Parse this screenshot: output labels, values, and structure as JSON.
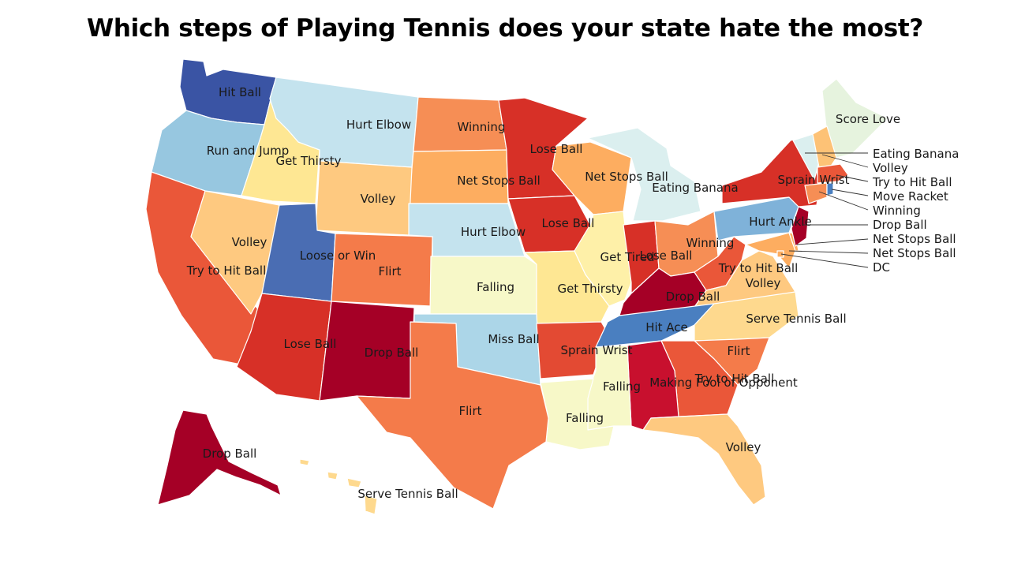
{
  "title": "Which steps of Playing Tennis does your state hate the most?",
  "palette": {
    "dark_red": "#a50026",
    "red": "#d73027",
    "orange_red": "#ea5739",
    "orange": "#f47b4a",
    "light_orange": "#fdad60",
    "peach": "#fec980",
    "yellow": "#fee793",
    "pale_yellow": "#f7f8c8",
    "mint": "#e6f3de",
    "pale_cyan": "#dbefef",
    "light_blue": "#c4e3ee",
    "sky": "#97c7e0",
    "mid_blue": "#7fb2d9",
    "blue": "#4a77b8",
    "dark_blue": "#3a54a4"
  },
  "states": {
    "WA": {
      "label": "Hit Ball",
      "color": "#3a54a4"
    },
    "OR": {
      "label": "Run and Jump",
      "color": "#97c7e0"
    },
    "ID": {
      "label": "Get Thirsty",
      "color": "#fee793"
    },
    "MT": {
      "label": "Hurt Elbow",
      "color": "#c4e3ee"
    },
    "ND": {
      "label": "Winning",
      "color": "#f68e55"
    },
    "MN": {
      "label": "Lose Ball",
      "color": "#d73027"
    },
    "WY": {
      "label": "Volley",
      "color": "#fec980"
    },
    "SD": {
      "label": "Net Stops Ball",
      "color": "#fdad60"
    },
    "WI": {
      "label": "Net Stops Ball",
      "color": "#fdad60"
    },
    "MI": {
      "label": "Eating Banana",
      "color": "#dbefef"
    },
    "CA": {
      "label": "Try to Hit Ball",
      "color": "#ea5739"
    },
    "NV": {
      "label": "Volley",
      "color": "#fec980"
    },
    "UT": {
      "label": "Loose or Win",
      "color": "#4a6db3"
    },
    "CO": {
      "label": "Flirt",
      "color": "#f47b4a"
    },
    "NE": {
      "label": "Hurt Elbow",
      "color": "#c4e3ee"
    },
    "IA": {
      "label": "Lose Ball",
      "color": "#d73027"
    },
    "IL": {
      "label": "Get Tired",
      "color": "#fef0a8"
    },
    "IN": {
      "label": "Lose Ball",
      "color": "#d73027"
    },
    "OH": {
      "label": "Winning",
      "color": "#f68e55"
    },
    "PA": {
      "label": "Hurt Ankle",
      "color": "#7fb2d9"
    },
    "NY": {
      "label": "Sprain Wrist",
      "color": "#d73027"
    },
    "KS": {
      "label": "Falling",
      "color": "#f7f8c8"
    },
    "MO": {
      "label": "Get Thirsty",
      "color": "#fee793"
    },
    "KY": {
      "label": "Drop Ball",
      "color": "#a50026"
    },
    "WV": {
      "label": "Try to Hit Ball",
      "color": "#ea5739"
    },
    "VA": {
      "label": "Volley",
      "color": "#fec980"
    },
    "AZ": {
      "label": "Lose Ball",
      "color": "#d73027"
    },
    "NM": {
      "label": "Drop Ball",
      "color": "#a50026"
    },
    "OK": {
      "label": "Miss Ball",
      "color": "#acd6e8"
    },
    "AR": {
      "label": "Sprain Wrist",
      "color": "#e34a33"
    },
    "TN": {
      "label": "Hit Ace",
      "color": "#4a7fc0"
    },
    "NC": {
      "label": "Serve Tennis Ball",
      "color": "#fed98e"
    },
    "TX": {
      "label": "Flirt",
      "color": "#f47b4a"
    },
    "LA": {
      "label": "Falling",
      "color": "#f7f8c8"
    },
    "MS": {
      "label": "Falling",
      "color": "#f7f8c8"
    },
    "AL": {
      "label": "Making Fool of Opponent",
      "color": "#c8102e"
    },
    "GA": {
      "label": "Try to Hit Ball",
      "color": "#ea5739"
    },
    "SC": {
      "label": "Flirt",
      "color": "#f47b4a"
    },
    "FL": {
      "label": "Volley",
      "color": "#fec980"
    },
    "ME": {
      "label": "Score Love",
      "color": "#e6f3de"
    },
    "AK": {
      "label": "Drop Ball",
      "color": "#a50026"
    },
    "HI": {
      "label": "Serve Tennis Ball",
      "color": "#fed98e"
    },
    "VT": {
      "label": "Eating Banana",
      "color": "#dbefef"
    },
    "NH": {
      "label": "Volley",
      "color": "#fdc276"
    },
    "MA": {
      "label": "Try to Hit Ball",
      "color": "#ea5739"
    },
    "RI": {
      "label": "Move Racket",
      "color": "#4a7fc0"
    },
    "CT": {
      "label": "Winning",
      "color": "#f68e55"
    },
    "NJ": {
      "label": "Drop Ball",
      "color": "#a50026"
    },
    "DE": {
      "label": "Net Stops Ball",
      "color": "#fdad60"
    },
    "MD": {
      "label": "Net Stops Ball",
      "color": "#fdad60"
    },
    "DC": {
      "label": "DC",
      "color": "#fdad60"
    }
  },
  "callouts": [
    "Eating Banana",
    "Volley",
    "Try to Hit Ball",
    "Move Racket",
    "Winning",
    "Drop Ball",
    "Net Stops Ball",
    "Net Stops Ball",
    "DC"
  ]
}
